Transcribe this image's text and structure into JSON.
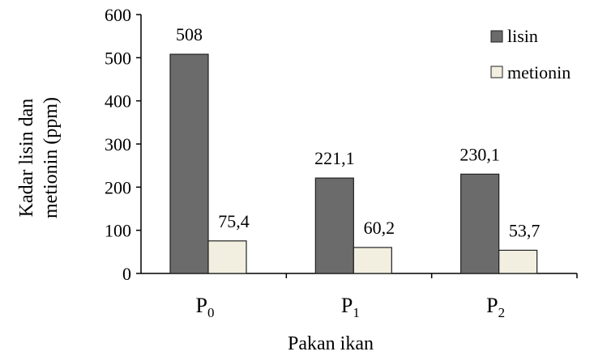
{
  "chart_data": {
    "type": "bar",
    "categories": [
      "P",
      "P",
      "P"
    ],
    "category_subscripts": [
      "0",
      "1",
      "2"
    ],
    "series": [
      {
        "name": "lisin",
        "values": [
          508,
          221.1,
          230.1
        ],
        "labels": [
          "508",
          "221,1",
          "230,1"
        ],
        "color": "#6b6b6b"
      },
      {
        "name": "metionin",
        "values": [
          75.4,
          60.2,
          53.7
        ],
        "labels": [
          "75,4",
          "60,2",
          "53,7"
        ],
        "color": "#f2efe0"
      }
    ],
    "xlabel": "Pakan ikan",
    "ylabel_lines": [
      "Kadar lisin dan",
      "metionin (ppm)"
    ],
    "yticks": [
      "0",
      "100",
      "200",
      "300",
      "400",
      "500",
      "600"
    ],
    "ylim": [
      0,
      600
    ],
    "legend_position": "top-right",
    "grid": false
  }
}
